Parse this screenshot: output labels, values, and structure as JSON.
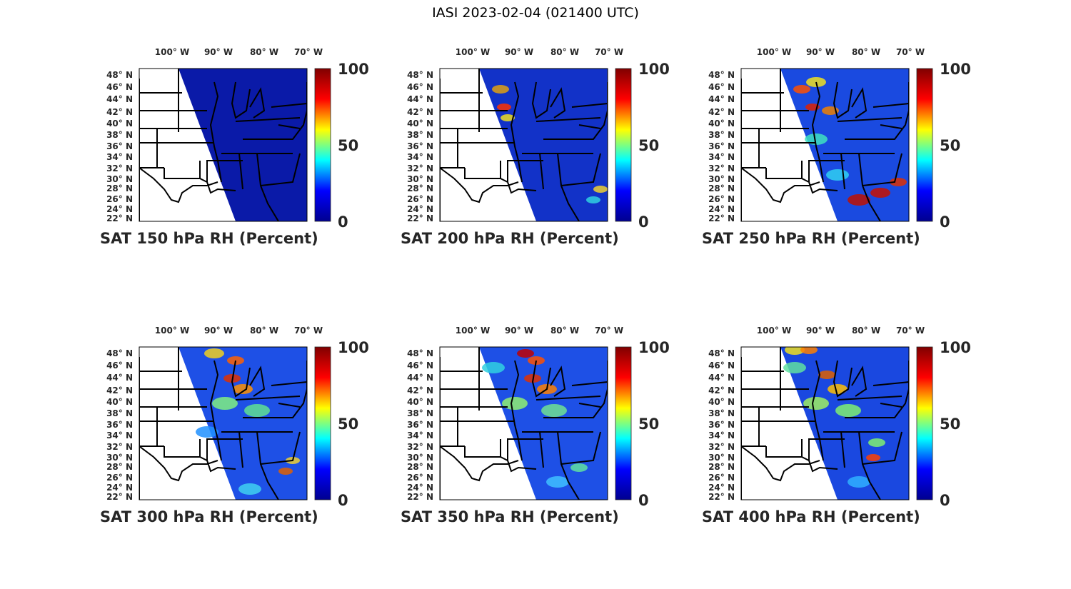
{
  "figure": {
    "title": "IASI 2023-02-04 (021400 UTC)"
  },
  "colorbar": {
    "ticks": [
      "0",
      "50",
      "100"
    ],
    "colormap": "jet",
    "range": [
      0,
      100
    ]
  },
  "axes": {
    "lon_labels": [
      "100° W",
      "90° W",
      "80° W",
      "70° W"
    ],
    "lat_labels": [
      "48° N",
      "46° N",
      "44° N",
      "42° N",
      "40° N",
      "38° N",
      "36° N",
      "34° N",
      "32° N",
      "30° N",
      "28° N",
      "26° N",
      "24° N",
      "22° N"
    ]
  },
  "panels": [
    {
      "title": "SAT 150 hPa RH (Percent)"
    },
    {
      "title": "SAT 200 hPa RH (Percent)"
    },
    {
      "title": "SAT 250 hPa RH (Percent)"
    },
    {
      "title": "SAT 300 hPa RH (Percent)"
    },
    {
      "title": "SAT 350 hPa RH (Percent)"
    },
    {
      "title": "SAT 400 hPa RH (Percent)"
    }
  ]
}
